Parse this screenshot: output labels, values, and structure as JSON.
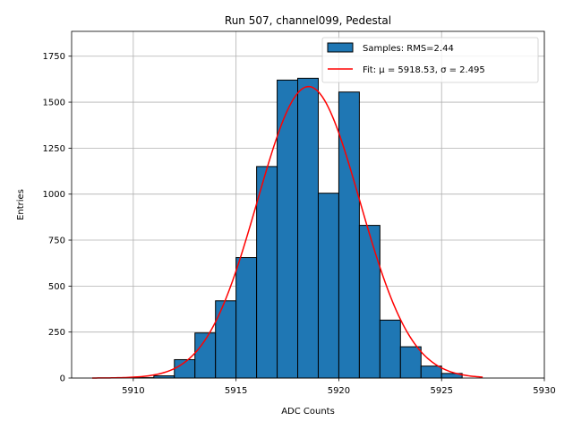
{
  "chart_data": {
    "type": "bar",
    "title": "Run 507, channel099, Pedestal",
    "xlabel": "ADC Counts",
    "ylabel": "Entries",
    "xlim": [
      5907,
      5930
    ],
    "ylim": [
      0,
      1885
    ],
    "xticks": [
      5910,
      5915,
      5920,
      5925,
      5930
    ],
    "yticks": [
      0,
      250,
      500,
      750,
      1000,
      1250,
      1500,
      1750
    ],
    "grid": true,
    "legend_position": "top-right",
    "histogram": {
      "name": "Samples: RMS=2.44",
      "color": "#1f77b4",
      "bin_edges": [
        5910,
        5911,
        5912,
        5913,
        5914,
        5915,
        5916,
        5917,
        5918,
        5919,
        5920,
        5921,
        5922,
        5923,
        5924,
        5925,
        5926
      ],
      "values": [
        2,
        12,
        100,
        245,
        420,
        655,
        1150,
        1620,
        1630,
        1005,
        1555,
        830,
        315,
        170,
        65,
        25
      ]
    },
    "fit": {
      "name": "Fit: μ = 5918.53, σ = 2.495",
      "color": "#ff0000",
      "mu": 5918.53,
      "sigma": 2.495,
      "amplitude": 1585,
      "x_range": [
        5908,
        5927
      ]
    }
  }
}
